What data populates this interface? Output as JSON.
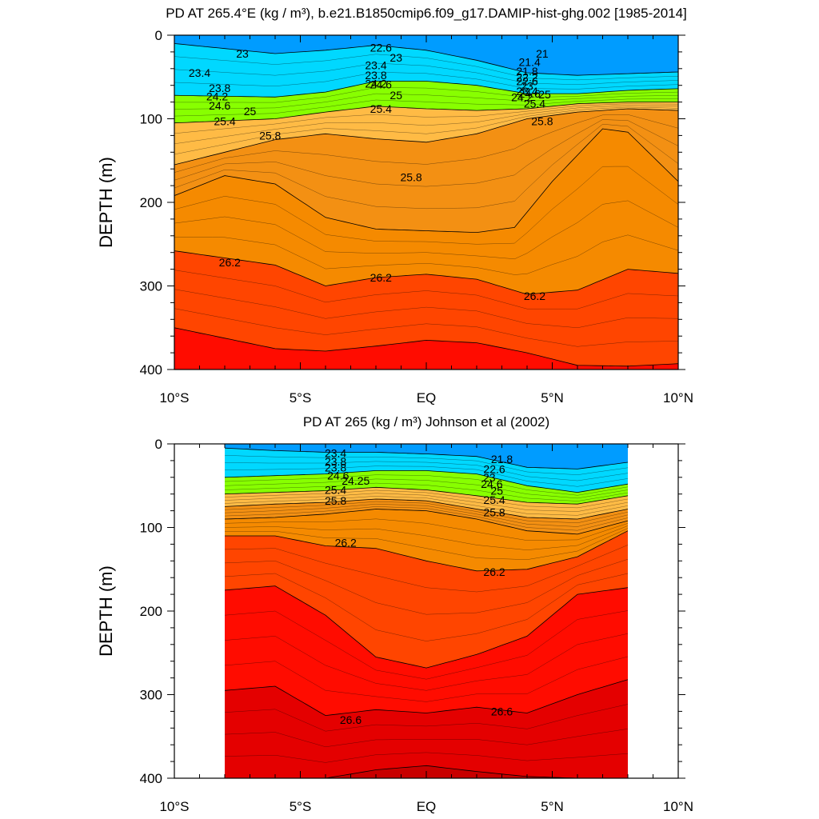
{
  "chart_data": [
    {
      "type": "contour",
      "title": "PD AT 265.4°E (kg / m³), b.e21.B1850cmip6.f09_g17.DAMIP-hist-ghg.002 [1985-2014]",
      "ylabel": "DEPTH (m)",
      "xlabel": "",
      "xlim": [
        -10,
        10
      ],
      "ylim": [
        0,
        400
      ],
      "y_inverted": true,
      "x_ticks": [
        -10,
        -5,
        0,
        5,
        10
      ],
      "x_tick_labels": [
        "10°S",
        "5°S",
        "EQ",
        "5°N",
        "10°N"
      ],
      "y_ticks": [
        0,
        100,
        200,
        300,
        400
      ],
      "y_tick_labels": [
        "0",
        "100",
        "200",
        "300",
        "400"
      ],
      "data_extent_lat": [
        -10,
        10
      ],
      "isopycnal_depths": [
        {
          "level": 23.4,
          "lat": [
            -10,
            -6,
            -4,
            -2,
            0,
            2,
            4,
            6,
            8,
            10
          ],
          "depth": [
            10,
            22,
            18,
            12,
            18,
            30,
            45,
            48,
            46,
            44
          ]
        },
        {
          "level": 24.6,
          "lat": [
            -10,
            -6,
            -4,
            -2,
            0,
            2,
            4,
            6,
            8,
            10
          ],
          "depth": [
            72,
            74,
            68,
            55,
            55,
            60,
            70,
            70,
            66,
            64
          ]
        },
        {
          "level": 25.4,
          "lat": [
            -10,
            -6,
            -4,
            -2,
            0,
            2,
            4,
            6,
            8,
            10
          ],
          "depth": [
            105,
            100,
            92,
            85,
            88,
            90,
            88,
            82,
            80,
            80
          ]
        },
        {
          "level": 25.8,
          "lat": [
            -10,
            -6,
            -4,
            -2,
            0,
            2,
            4,
            6,
            8,
            10
          ],
          "depth": [
            155,
            125,
            118,
            124,
            128,
            118,
            100,
            92,
            88,
            90
          ]
        },
        {
          "level": 26.0,
          "lat": [
            -10,
            -8,
            -6,
            -4,
            -2,
            0,
            2,
            3.5,
            5,
            7,
            8,
            10
          ],
          "depth": [
            192,
            168,
            178,
            218,
            232,
            234,
            236,
            230,
            175,
            112,
            116,
            175
          ]
        },
        {
          "level": 26.2,
          "lat": [
            -10,
            -6,
            -4,
            -2,
            0,
            2,
            4,
            6,
            8,
            10
          ],
          "depth": [
            258,
            275,
            300,
            290,
            286,
            292,
            310,
            305,
            280,
            285
          ]
        },
        {
          "level": 26.4,
          "lat": [
            -10,
            -6,
            -4,
            -2,
            0,
            2,
            4,
            6,
            8,
            10
          ],
          "depth": [
            350,
            375,
            378,
            372,
            365,
            368,
            380,
            395,
            396,
            393
          ]
        }
      ],
      "labels": [
        {
          "text": "23",
          "lat": -7.3,
          "depth": 22
        },
        {
          "text": "23.4",
          "lat": -9,
          "depth": 45
        },
        {
          "text": "23.8",
          "lat": -8.2,
          "depth": 63
        },
        {
          "text": "24.2",
          "lat": -8.3,
          "depth": 73
        },
        {
          "text": "24.6",
          "lat": -8.2,
          "depth": 84
        },
        {
          "text": "25",
          "lat": -7,
          "depth": 91
        },
        {
          "text": "25.4",
          "lat": -8,
          "depth": 103
        },
        {
          "text": "25.8",
          "lat": -6.2,
          "depth": 120
        },
        {
          "text": "26.2",
          "lat": -7.8,
          "depth": 272
        },
        {
          "text": "22.6",
          "lat": -1.8,
          "depth": 15
        },
        {
          "text": "23",
          "lat": -1.2,
          "depth": 27
        },
        {
          "text": "23.4",
          "lat": -2,
          "depth": 36
        },
        {
          "text": "23.8",
          "lat": -2,
          "depth": 48
        },
        {
          "text": "24.2",
          "lat": -2,
          "depth": 58
        },
        {
          "text": "24.6",
          "lat": -1.8,
          "depth": 59
        },
        {
          "text": "25",
          "lat": -1.2,
          "depth": 72
        },
        {
          "text": "25.4",
          "lat": -1.8,
          "depth": 88
        },
        {
          "text": "25.8",
          "lat": -0.6,
          "depth": 170
        },
        {
          "text": "26.2",
          "lat": -1.8,
          "depth": 290
        },
        {
          "text": "21",
          "lat": 4.6,
          "depth": 22
        },
        {
          "text": "21.4",
          "lat": 4.1,
          "depth": 32
        },
        {
          "text": "21.8",
          "lat": 4.0,
          "depth": 43
        },
        {
          "text": "22.2",
          "lat": 4.0,
          "depth": 50
        },
        {
          "text": "22.6",
          "lat": 4.0,
          "depth": 55
        },
        {
          "text": "23",
          "lat": 4.0,
          "depth": 61
        },
        {
          "text": "23.4",
          "lat": 4.0,
          "depth": 67
        },
        {
          "text": "24.2",
          "lat": 3.8,
          "depth": 74
        },
        {
          "text": "24.6",
          "lat": 4.1,
          "depth": 70
        },
        {
          "text": "25",
          "lat": 4.7,
          "depth": 71
        },
        {
          "text": "25.4",
          "lat": 4.3,
          "depth": 82
        },
        {
          "text": "25.8",
          "lat": 4.6,
          "depth": 103
        },
        {
          "text": "26.2",
          "lat": 4.3,
          "depth": 312
        }
      ]
    },
    {
      "type": "contour",
      "title": "PD AT 265 (kg / m³) Johnson et al (2002)",
      "ylabel": "DEPTH (m)",
      "xlabel": "",
      "xlim": [
        -10,
        10
      ],
      "ylim": [
        0,
        400
      ],
      "y_inverted": true,
      "x_ticks": [
        -10,
        -5,
        0,
        5,
        10
      ],
      "x_tick_labels": [
        "10°S",
        "5°S",
        "EQ",
        "5°N",
        "10°N"
      ],
      "y_ticks": [
        0,
        100,
        200,
        300,
        400
      ],
      "y_tick_labels": [
        "0",
        "100",
        "200",
        "300",
        "400"
      ],
      "data_extent_lat": [
        -8,
        8
      ],
      "isopycnal_depths": [
        {
          "level": 23.4,
          "lat": [
            -8,
            -6,
            -4,
            -2,
            0,
            2,
            4,
            6,
            8
          ],
          "depth": [
            5,
            8,
            10,
            10,
            12,
            15,
            28,
            30,
            22
          ]
        },
        {
          "level": 24.6,
          "lat": [
            -8,
            -6,
            -4,
            -2,
            0,
            2,
            4,
            6,
            8
          ],
          "depth": [
            40,
            38,
            36,
            32,
            32,
            36,
            50,
            58,
            48
          ]
        },
        {
          "level": 25.4,
          "lat": [
            -8,
            -6,
            -4,
            -2,
            0,
            2,
            4,
            6,
            8
          ],
          "depth": [
            60,
            58,
            56,
            52,
            55,
            62,
            70,
            72,
            62
          ]
        },
        {
          "level": 25.8,
          "lat": [
            -8,
            -6,
            -4,
            -2,
            0,
            2,
            4,
            6,
            8
          ],
          "depth": [
            75,
            72,
            70,
            66,
            68,
            78,
            88,
            90,
            78
          ]
        },
        {
          "level": 26.0,
          "lat": [
            -8,
            -6,
            -4,
            -2,
            0,
            2,
            4,
            6,
            8
          ],
          "depth": [
            90,
            88,
            84,
            78,
            80,
            90,
            104,
            108,
            92
          ]
        },
        {
          "level": 26.2,
          "lat": [
            -8,
            -6,
            -4,
            -2,
            0,
            2,
            4,
            6,
            8
          ],
          "depth": [
            110,
            110,
            122,
            125,
            140,
            152,
            150,
            135,
            104
          ]
        },
        {
          "level": 26.4,
          "lat": [
            -8,
            -6,
            -4,
            -2,
            0,
            2,
            4,
            6,
            8
          ],
          "depth": [
            175,
            170,
            205,
            255,
            268,
            252,
            230,
            180,
            172
          ]
        },
        {
          "level": 26.6,
          "lat": [
            -8,
            -6,
            -4,
            -2,
            0,
            2,
            4,
            6,
            8
          ],
          "depth": [
            295,
            290,
            325,
            318,
            322,
            315,
            322,
            300,
            282
          ]
        },
        {
          "level": 26.8,
          "lat": [
            -8,
            -6,
            -4,
            -2,
            0,
            2,
            4,
            6,
            8
          ],
          "depth": [
            400,
            400,
            400,
            390,
            385,
            392,
            398,
            400,
            400
          ]
        }
      ],
      "labels": [
        {
          "text": "23.4",
          "lat": -3.6,
          "depth": 11
        },
        {
          "text": "23.8",
          "lat": -3.6,
          "depth": 21
        },
        {
          "text": "23.8",
          "lat": -3.6,
          "depth": 28
        },
        {
          "text": "24.6",
          "lat": -3.5,
          "depth": 38
        },
        {
          "text": "24.25",
          "lat": -2.8,
          "depth": 44
        },
        {
          "text": "25.4",
          "lat": -3.6,
          "depth": 55
        },
        {
          "text": "25.8",
          "lat": -3.6,
          "depth": 68
        },
        {
          "text": "26.2",
          "lat": -3.2,
          "depth": 118
        },
        {
          "text": "26.6",
          "lat": -3.0,
          "depth": 330
        },
        {
          "text": "21.8",
          "lat": 3.0,
          "depth": 18
        },
        {
          "text": "22.6",
          "lat": 2.7,
          "depth": 30
        },
        {
          "text": "23",
          "lat": 2.5,
          "depth": 40
        },
        {
          "text": "24.6",
          "lat": 2.6,
          "depth": 48
        },
        {
          "text": "25",
          "lat": 2.8,
          "depth": 56
        },
        {
          "text": "25.4",
          "lat": 2.7,
          "depth": 67
        },
        {
          "text": "25.8",
          "lat": 2.7,
          "depth": 82
        },
        {
          "text": "26.2",
          "lat": 2.7,
          "depth": 153
        },
        {
          "text": "26.6",
          "lat": 3.0,
          "depth": 320
        }
      ]
    }
  ],
  "colors": {
    "frame": "#000000",
    "bands": [
      "#ffffff",
      "#d0d0d0",
      "#909090",
      "#606060",
      "#ff00ff",
      "#9900ff",
      "#2000ff",
      "#0090ff",
      "#00c8ff",
      "#00ffff",
      "#00ff99",
      "#00e600",
      "#99ff00",
      "#ffff00",
      "#ffdc3c",
      "#ffbe3c",
      "#ffa530",
      "#f08a00",
      "#ff4d00",
      "#ff0a00",
      "#d70000",
      "#b80000"
    ]
  }
}
